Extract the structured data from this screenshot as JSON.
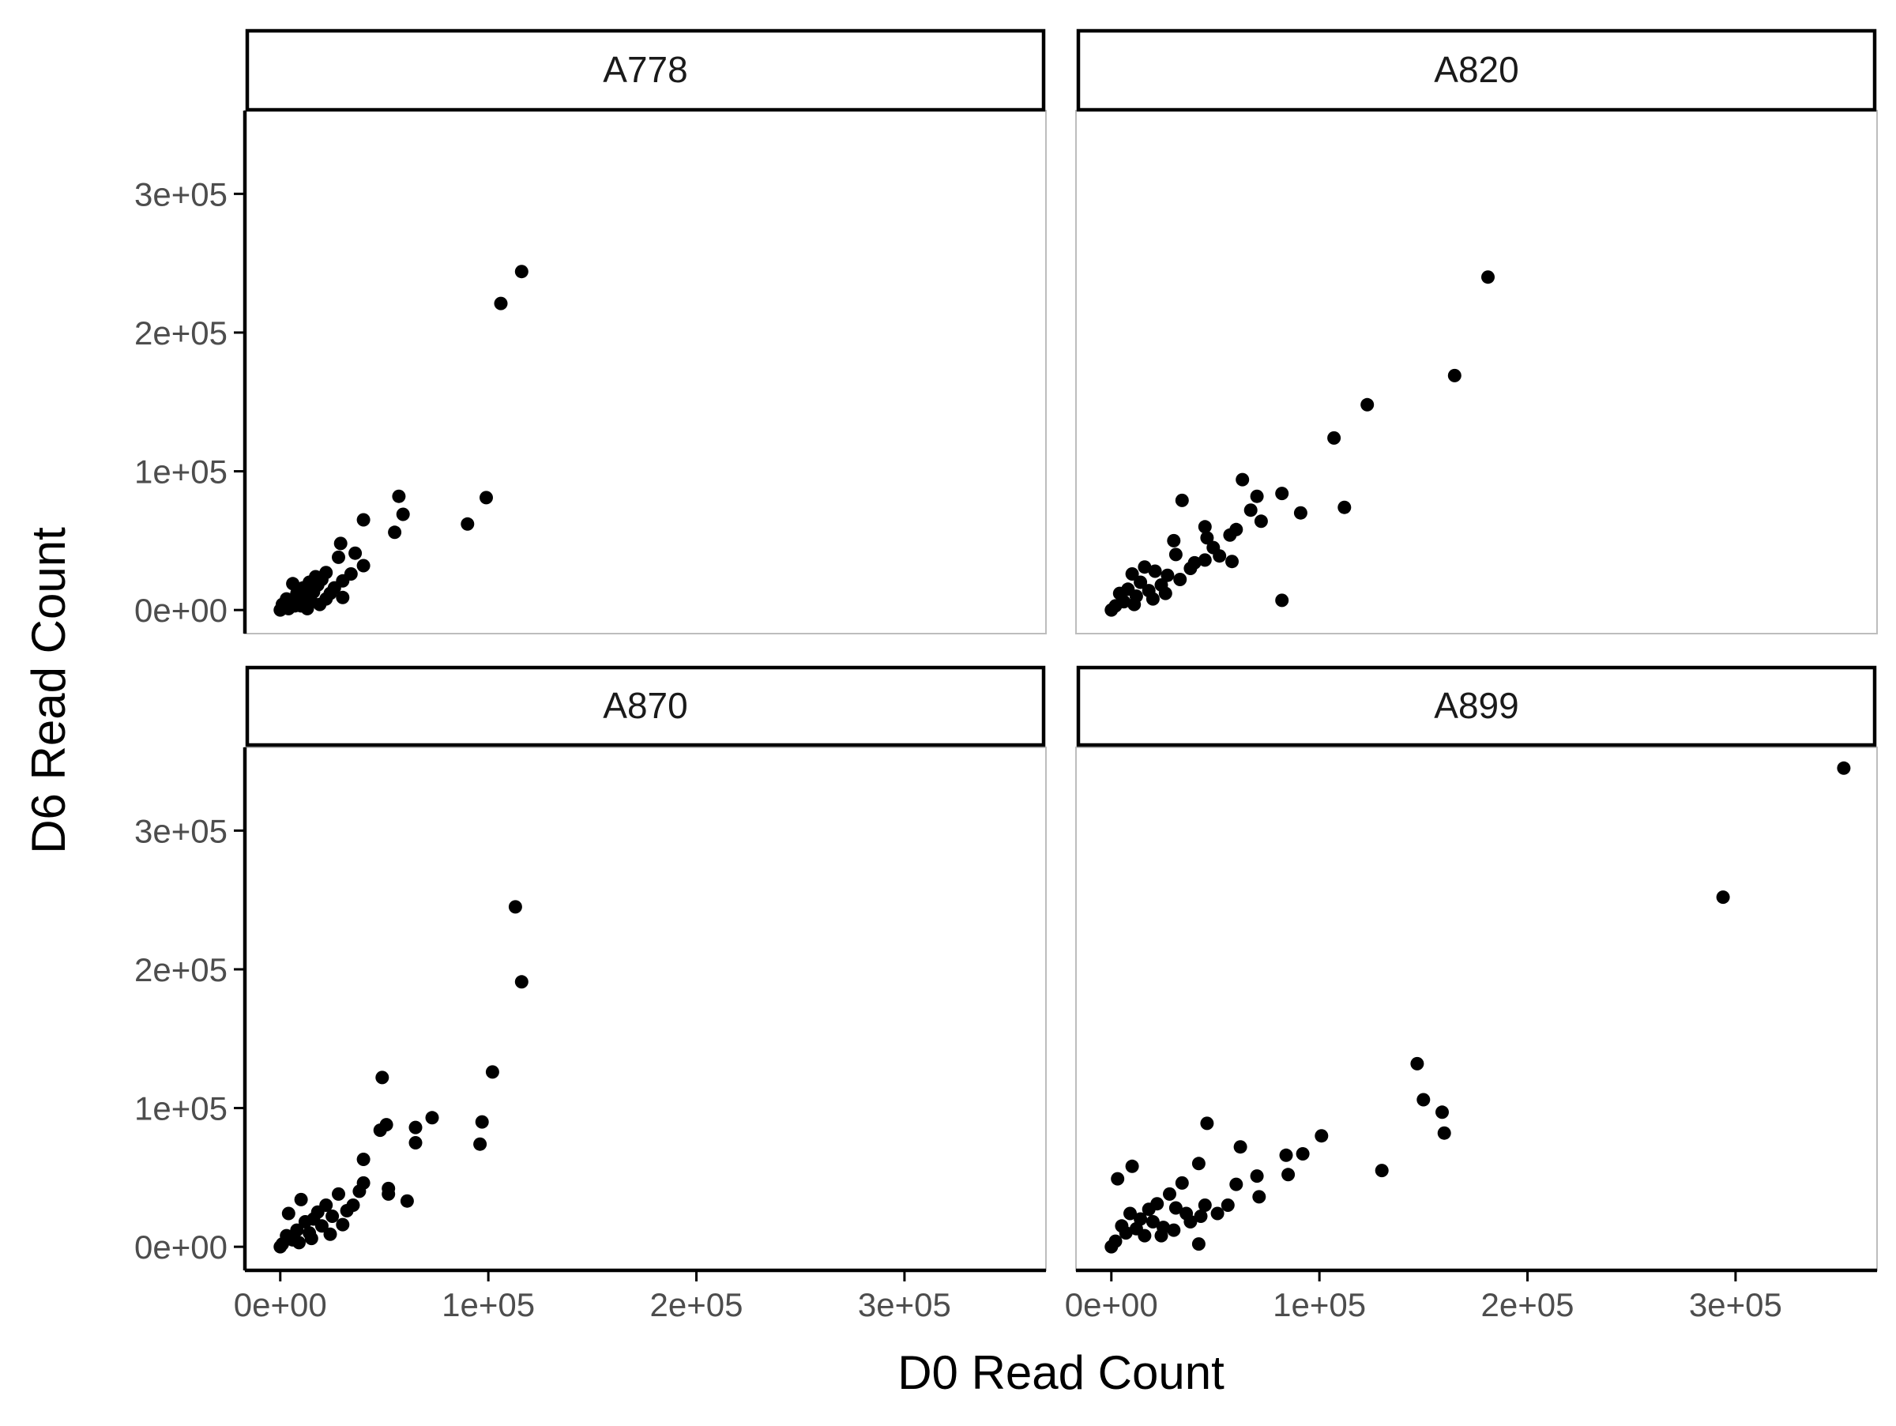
{
  "chart_data": {
    "type": "scatter",
    "layout": "facet-grid-2x2",
    "xlabel": "D0 Read Count",
    "ylabel": "D6 Read Count",
    "xlim": [
      -17000,
      368000
    ],
    "ylim": [
      -17000,
      360000
    ],
    "ticks": [
      0,
      100000,
      200000,
      300000
    ],
    "tick_labels": [
      "0e+00",
      "1e+05",
      "2e+05",
      "3e+05"
    ],
    "grid": false,
    "point_color": "#000000",
    "panels": [
      {
        "title": "A778",
        "points": [
          [
            116000,
            244000
          ],
          [
            106000,
            221000
          ],
          [
            57000,
            82000
          ],
          [
            59000,
            69000
          ],
          [
            99000,
            81000
          ],
          [
            90000,
            62000
          ],
          [
            55000,
            56000
          ],
          [
            40000,
            65000
          ],
          [
            40000,
            32000
          ],
          [
            36000,
            41000
          ],
          [
            29000,
            48000
          ],
          [
            28000,
            38000
          ],
          [
            34000,
            26000
          ],
          [
            30000,
            21000
          ],
          [
            26000,
            16000
          ],
          [
            30000,
            9000
          ],
          [
            22000,
            27000
          ],
          [
            20000,
            22000
          ],
          [
            18000,
            18000
          ],
          [
            16000,
            13000
          ],
          [
            14000,
            20000
          ],
          [
            12000,
            10000
          ],
          [
            11000,
            16000
          ],
          [
            9000,
            7000
          ],
          [
            8000,
            12000
          ],
          [
            7000,
            3000
          ],
          [
            6000,
            19000
          ],
          [
            5000,
            5000
          ],
          [
            4000,
            1000
          ],
          [
            3000,
            8000
          ],
          [
            2000,
            2000
          ],
          [
            1000,
            4000
          ],
          [
            0,
            0
          ],
          [
            10000,
            3000
          ],
          [
            15000,
            6000
          ],
          [
            19000,
            4000
          ],
          [
            24000,
            12000
          ],
          [
            13000,
            1000
          ],
          [
            22000,
            8000
          ],
          [
            17000,
            24000
          ]
        ]
      },
      {
        "title": "A820",
        "points": [
          [
            181000,
            240000
          ],
          [
            165000,
            169000
          ],
          [
            123000,
            148000
          ],
          [
            107000,
            124000
          ],
          [
            112000,
            74000
          ],
          [
            91000,
            70000
          ],
          [
            82000,
            84000
          ],
          [
            70000,
            82000
          ],
          [
            72000,
            64000
          ],
          [
            67000,
            72000
          ],
          [
            63000,
            94000
          ],
          [
            60000,
            58000
          ],
          [
            57000,
            54000
          ],
          [
            34000,
            79000
          ],
          [
            45000,
            60000
          ],
          [
            46000,
            52000
          ],
          [
            49000,
            45000
          ],
          [
            58000,
            35000
          ],
          [
            52000,
            39000
          ],
          [
            45000,
            36000
          ],
          [
            38000,
            30000
          ],
          [
            30000,
            50000
          ],
          [
            31000,
            40000
          ],
          [
            33000,
            22000
          ],
          [
            27000,
            25000
          ],
          [
            24000,
            18000
          ],
          [
            21000,
            28000
          ],
          [
            18000,
            14000
          ],
          [
            16000,
            31000
          ],
          [
            14000,
            20000
          ],
          [
            12000,
            10000
          ],
          [
            10000,
            26000
          ],
          [
            8000,
            15000
          ],
          [
            6000,
            6000
          ],
          [
            4000,
            12000
          ],
          [
            2000,
            3000
          ],
          [
            0,
            0
          ],
          [
            82000,
            7000
          ],
          [
            26000,
            12000
          ],
          [
            20000,
            8000
          ],
          [
            11000,
            4000
          ],
          [
            40000,
            34000
          ]
        ]
      },
      {
        "title": "A870",
        "points": [
          [
            113000,
            245000
          ],
          [
            116000,
            191000
          ],
          [
            102000,
            126000
          ],
          [
            49000,
            122000
          ],
          [
            97000,
            90000
          ],
          [
            96000,
            74000
          ],
          [
            73000,
            93000
          ],
          [
            65000,
            86000
          ],
          [
            65000,
            75000
          ],
          [
            51000,
            88000
          ],
          [
            48000,
            84000
          ],
          [
            40000,
            63000
          ],
          [
            61000,
            33000
          ],
          [
            52000,
            38000
          ],
          [
            52000,
            42000
          ],
          [
            40000,
            46000
          ],
          [
            38000,
            40000
          ],
          [
            35000,
            30000
          ],
          [
            32000,
            26000
          ],
          [
            28000,
            38000
          ],
          [
            25000,
            22000
          ],
          [
            22000,
            30000
          ],
          [
            20000,
            15000
          ],
          [
            18000,
            25000
          ],
          [
            16000,
            20000
          ],
          [
            14000,
            10000
          ],
          [
            12000,
            18000
          ],
          [
            10000,
            34000
          ],
          [
            8000,
            12000
          ],
          [
            6000,
            5000
          ],
          [
            4000,
            24000
          ],
          [
            3000,
            8000
          ],
          [
            1000,
            2000
          ],
          [
            0,
            0
          ],
          [
            24000,
            9000
          ],
          [
            30000,
            16000
          ],
          [
            9000,
            3000
          ],
          [
            15000,
            6000
          ]
        ]
      },
      {
        "title": "A899",
        "points": [
          [
            352000,
            345000
          ],
          [
            294000,
            252000
          ],
          [
            147000,
            132000
          ],
          [
            150000,
            106000
          ],
          [
            159000,
            97000
          ],
          [
            160000,
            82000
          ],
          [
            130000,
            55000
          ],
          [
            101000,
            80000
          ],
          [
            92000,
            67000
          ],
          [
            84000,
            66000
          ],
          [
            85000,
            52000
          ],
          [
            70000,
            51000
          ],
          [
            71000,
            36000
          ],
          [
            62000,
            72000
          ],
          [
            60000,
            45000
          ],
          [
            46000,
            89000
          ],
          [
            42000,
            60000
          ],
          [
            56000,
            30000
          ],
          [
            51000,
            24000
          ],
          [
            45000,
            30000
          ],
          [
            43000,
            22000
          ],
          [
            42000,
            2000
          ],
          [
            34000,
            46000
          ],
          [
            36000,
            24000
          ],
          [
            31000,
            28000
          ],
          [
            28000,
            38000
          ],
          [
            25000,
            14000
          ],
          [
            22000,
            31000
          ],
          [
            20000,
            18000
          ],
          [
            18000,
            27000
          ],
          [
            16000,
            8000
          ],
          [
            14000,
            20000
          ],
          [
            12000,
            13000
          ],
          [
            10000,
            58000
          ],
          [
            9000,
            24000
          ],
          [
            7000,
            10000
          ],
          [
            5000,
            15000
          ],
          [
            3000,
            49000
          ],
          [
            2000,
            4000
          ],
          [
            0,
            0
          ],
          [
            24000,
            8000
          ],
          [
            30000,
            12000
          ],
          [
            38000,
            18000
          ]
        ]
      }
    ]
  }
}
